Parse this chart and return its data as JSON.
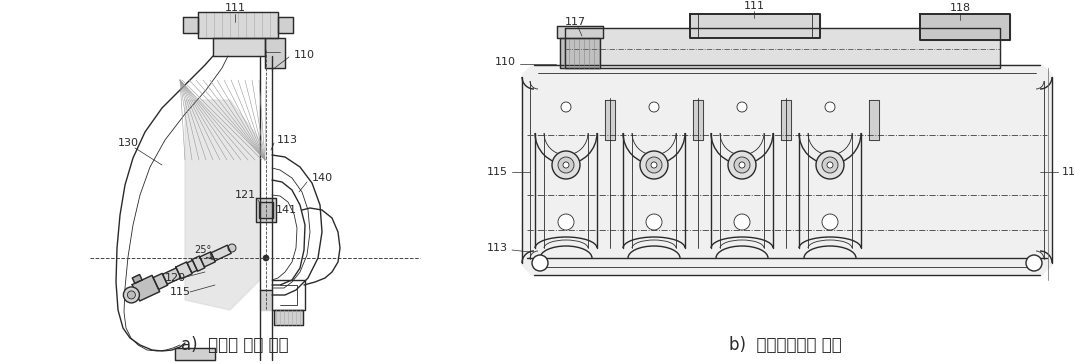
{
  "fig_width": 10.75,
  "fig_height": 3.64,
  "dpi": 100,
  "bg_color": "#ffffff",
  "line_color": "#2a2a2a",
  "label_a": "a)  인젝터 취부 구조",
  "label_b": "b)  흡기매니폴드 구조",
  "label_fontsize": 12,
  "hatch_gray": "#b8b8b8",
  "mid_gray": "#d0d0d0",
  "light_gray": "#e8e8e8",
  "dark_gray": "#909090"
}
